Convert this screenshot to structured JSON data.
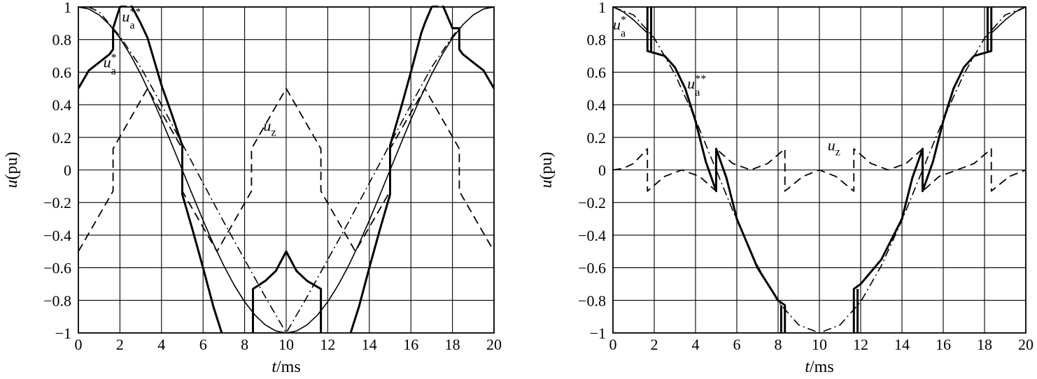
{
  "chart_data": [
    {
      "type": "line",
      "xlabel_var": "t",
      "xlabel_unit": "/ms",
      "ylabel_var": "u",
      "ylabel_unit": "(pu)",
      "xlim": [
        0,
        20
      ],
      "ylim": [
        -1,
        1
      ],
      "xticks": [
        "0",
        "2",
        "4",
        "6",
        "8",
        "10",
        "12",
        "14",
        "16",
        "18",
        "20"
      ],
      "yticks": [
        "1",
        "0.8",
        "0.6",
        "0.4",
        "0.2",
        "0",
        "−0.2",
        "−0.4",
        "−0.6",
        "−0.8",
        "−1"
      ],
      "grid": true,
      "series": [
        {
          "name": "u_a*",
          "style": "solid-thin",
          "x": [
            0,
            0.5,
            1,
            1.5,
            2,
            2.5,
            3,
            3.5,
            4,
            4.5,
            5,
            5.5,
            6,
            6.5,
            7,
            7.5,
            8,
            8.5,
            9,
            9.5,
            10,
            10.5,
            11,
            11.5,
            12,
            12.5,
            13,
            13.5,
            14,
            14.5,
            15,
            15.5,
            16,
            16.5,
            17,
            17.5,
            18,
            18.5,
            19,
            19.5,
            20
          ],
          "y": [
            1,
            0.988,
            0.951,
            0.891,
            0.809,
            0.707,
            0.588,
            0.454,
            0.309,
            0.156,
            0,
            -0.156,
            -0.309,
            -0.454,
            -0.588,
            -0.707,
            -0.809,
            -0.891,
            -0.951,
            -0.988,
            -1,
            -0.988,
            -0.951,
            -0.891,
            -0.809,
            -0.707,
            -0.588,
            -0.454,
            -0.309,
            -0.156,
            0,
            0.156,
            0.309,
            0.454,
            0.588,
            0.707,
            0.809,
            0.891,
            0.951,
            0.988,
            1
          ]
        },
        {
          "name": "u_z",
          "style": "dashed",
          "x": [
            0,
            1.67,
            1.67,
            3.33,
            5,
            5,
            6.67,
            8.33,
            8.33,
            10,
            11.67,
            11.67,
            13.33,
            15,
            15,
            16.67,
            18.33,
            18.33,
            20
          ],
          "y": [
            -0.5,
            -0.13,
            0.13,
            0.5,
            0.13,
            -0.13,
            -0.5,
            -0.13,
            0.13,
            0.5,
            0.13,
            -0.13,
            -0.5,
            -0.13,
            0.13,
            0.5,
            0.13,
            -0.13,
            -0.5
          ]
        },
        {
          "name": "u_a**",
          "style": "solid-thick",
          "x": [
            0,
            0.5,
            1,
            1.5,
            1.67,
            1.67,
            2,
            2.5,
            3,
            3.33,
            4,
            4.5,
            5,
            5,
            5.5,
            6,
            6.5,
            6.9
          ],
          "y": [
            0.5,
            0.61,
            0.66,
            0.71,
            0.74,
            0.87,
            1.0,
            1.02,
            0.9,
            0.81,
            0.52,
            0.34,
            0.15,
            -0.15,
            -0.37,
            -0.6,
            -0.84,
            -1.0
          ]
        },
        {
          "name": "",
          "style": "solid-thick",
          "x": [
            8.4,
            8.4,
            9,
            9.5,
            10,
            10.5,
            11,
            11.67,
            11.67
          ],
          "y": [
            -1.0,
            -0.73,
            -0.68,
            -0.62,
            -0.5,
            -0.62,
            -0.68,
            -0.73,
            -1.0
          ]
        },
        {
          "name": "",
          "style": "solid-thick",
          "x": [
            13.1,
            13.5,
            14,
            14.5,
            15,
            15,
            15.5,
            16,
            16.5,
            16.67,
            17,
            17.5,
            18,
            18.33,
            18.33,
            18.5,
            19,
            19.5,
            20
          ],
          "y": [
            -1.0,
            -0.84,
            -0.6,
            -0.37,
            -0.15,
            0.15,
            0.37,
            0.6,
            0.84,
            0.9,
            1.0,
            1.02,
            0.87,
            0.87,
            0.74,
            0.71,
            0.66,
            0.61,
            0.5
          ]
        },
        {
          "name": "",
          "style": "dashdot",
          "x": [
            0.5,
            1,
            1.67,
            2,
            3,
            4,
            5,
            6,
            7,
            8,
            9,
            10,
            11,
            12,
            13,
            14,
            15,
            16,
            17,
            18,
            18.33
          ],
          "y": [
            1.0,
            0.97,
            0.87,
            0.82,
            0.63,
            0.4,
            0.16,
            -0.08,
            -0.32,
            -0.55,
            -0.78,
            -1.0,
            -0.78,
            -0.55,
            -0.32,
            -0.08,
            0.16,
            0.4,
            0.63,
            0.82,
            0.87
          ]
        }
      ],
      "annotations": [
        {
          "text": "u",
          "sub": "a",
          "sup": "**",
          "x": 2.1,
          "y": 0.91
        },
        {
          "text": "u",
          "sub": "a",
          "sup": "*",
          "x": 1.2,
          "y": 0.63
        },
        {
          "text": "u",
          "sub": "z",
          "sup": "",
          "x": 8.9,
          "y": 0.24
        }
      ]
    },
    {
      "type": "line",
      "xlabel_var": "t",
      "xlabel_unit": "/ms",
      "ylabel_var": "u",
      "ylabel_unit": "(pu)",
      "xlim": [
        0,
        20
      ],
      "ylim": [
        -1,
        1
      ],
      "xticks": [
        "0",
        "2",
        "4",
        "6",
        "8",
        "10",
        "12",
        "14",
        "16",
        "18",
        "20"
      ],
      "yticks": [
        "1",
        "0.8",
        "0.6",
        "0.4",
        "0.2",
        "0",
        "−0.2",
        "−0.4",
        "−0.6",
        "−0.8",
        "−1"
      ],
      "grid": true,
      "series": [
        {
          "name": "u_a*",
          "style": "dashdot",
          "x": [
            0,
            1,
            2,
            3,
            4,
            5,
            6,
            7,
            8,
            9,
            10,
            11,
            12,
            13,
            14,
            15,
            16,
            17,
            18,
            19,
            20
          ],
          "y": [
            1,
            0.951,
            0.809,
            0.588,
            0.309,
            0,
            -0.309,
            -0.588,
            -0.809,
            -0.951,
            -1,
            -0.951,
            -0.809,
            -0.588,
            -0.309,
            0,
            0.309,
            0.588,
            0.809,
            0.951,
            1
          ]
        },
        {
          "name": "u_z",
          "style": "dashed",
          "x": [
            0,
            0.5,
            1,
            1.67,
            1.67,
            2.5,
            3.33,
            4.2,
            5,
            5,
            5.8,
            6.67,
            7.5,
            8.33,
            8.33,
            9.2,
            10,
            10.8,
            11.67,
            11.67,
            12.5,
            13.33,
            14.2,
            15,
            15,
            15.8,
            16.67,
            17.5,
            18.33,
            18.33,
            19.2,
            20
          ],
          "y": [
            0,
            0.01,
            0.04,
            0.13,
            -0.13,
            -0.04,
            0,
            -0.04,
            -0.13,
            0.13,
            0.04,
            0,
            0.04,
            0.13,
            -0.13,
            -0.04,
            0,
            -0.04,
            -0.13,
            0.13,
            0.04,
            0,
            0.04,
            0.13,
            -0.13,
            -0.04,
            0,
            0.04,
            0.13,
            -0.13,
            -0.04,
            0
          ]
        },
        {
          "name": "u_a**",
          "style": "solid-thick",
          "x": [
            1.67,
            1.67,
            2.5,
            3,
            3.5,
            4,
            4.5,
            5,
            5,
            5.5,
            6,
            7,
            8,
            8.33,
            8.33
          ],
          "y": [
            1.0,
            0.73,
            0.7,
            0.63,
            0.5,
            0.3,
            0.05,
            -0.13,
            0.13,
            -0.05,
            -0.3,
            -0.6,
            -0.8,
            -0.83,
            -1.0
          ]
        },
        {
          "name": "",
          "style": "solid-thick",
          "x": [
            11.67,
            11.67,
            12,
            13,
            14,
            14.5,
            15,
            15,
            15.5,
            16,
            16.5,
            17,
            17.5,
            18.33,
            18.33
          ],
          "y": [
            -1.0,
            -0.73,
            -0.7,
            -0.55,
            -0.3,
            -0.05,
            0.13,
            -0.13,
            0.05,
            0.3,
            0.5,
            0.63,
            0.7,
            0.73,
            1.0
          ]
        },
        {
          "name": "",
          "style": "solid-thick",
          "x": [
            1.85,
            1.85
          ],
          "y": [
            0.73,
            1.0
          ]
        },
        {
          "name": "",
          "style": "solid-thick",
          "x": [
            8.15,
            8.15
          ],
          "y": [
            -0.83,
            -1.0
          ]
        },
        {
          "name": "",
          "style": "solid-thick",
          "x": [
            11.85,
            11.85
          ],
          "y": [
            -0.73,
            -1.0
          ]
        },
        {
          "name": "",
          "style": "solid-thick",
          "x": [
            18.15,
            18.15
          ],
          "y": [
            0.73,
            1.0
          ]
        },
        {
          "name": "",
          "style": "solid-thin",
          "x": [
            0,
            0.5,
            1,
            1.67
          ],
          "y": [
            1.0,
            0.97,
            0.92,
            0.84
          ]
        },
        {
          "name": "",
          "style": "solid-thin",
          "x": [
            18.33,
            19,
            19.5,
            20
          ],
          "y": [
            0.84,
            0.92,
            0.97,
            1.0
          ]
        }
      ],
      "annotations": [
        {
          "text": "u",
          "sub": "a",
          "sup": "*",
          "x": 0.0,
          "y": 0.86
        },
        {
          "text": "u",
          "sub": "a",
          "sup": "**",
          "x": 3.6,
          "y": 0.5
        },
        {
          "text": "u",
          "sub": "z",
          "sup": "",
          "x": 10.4,
          "y": 0.12
        }
      ]
    }
  ]
}
